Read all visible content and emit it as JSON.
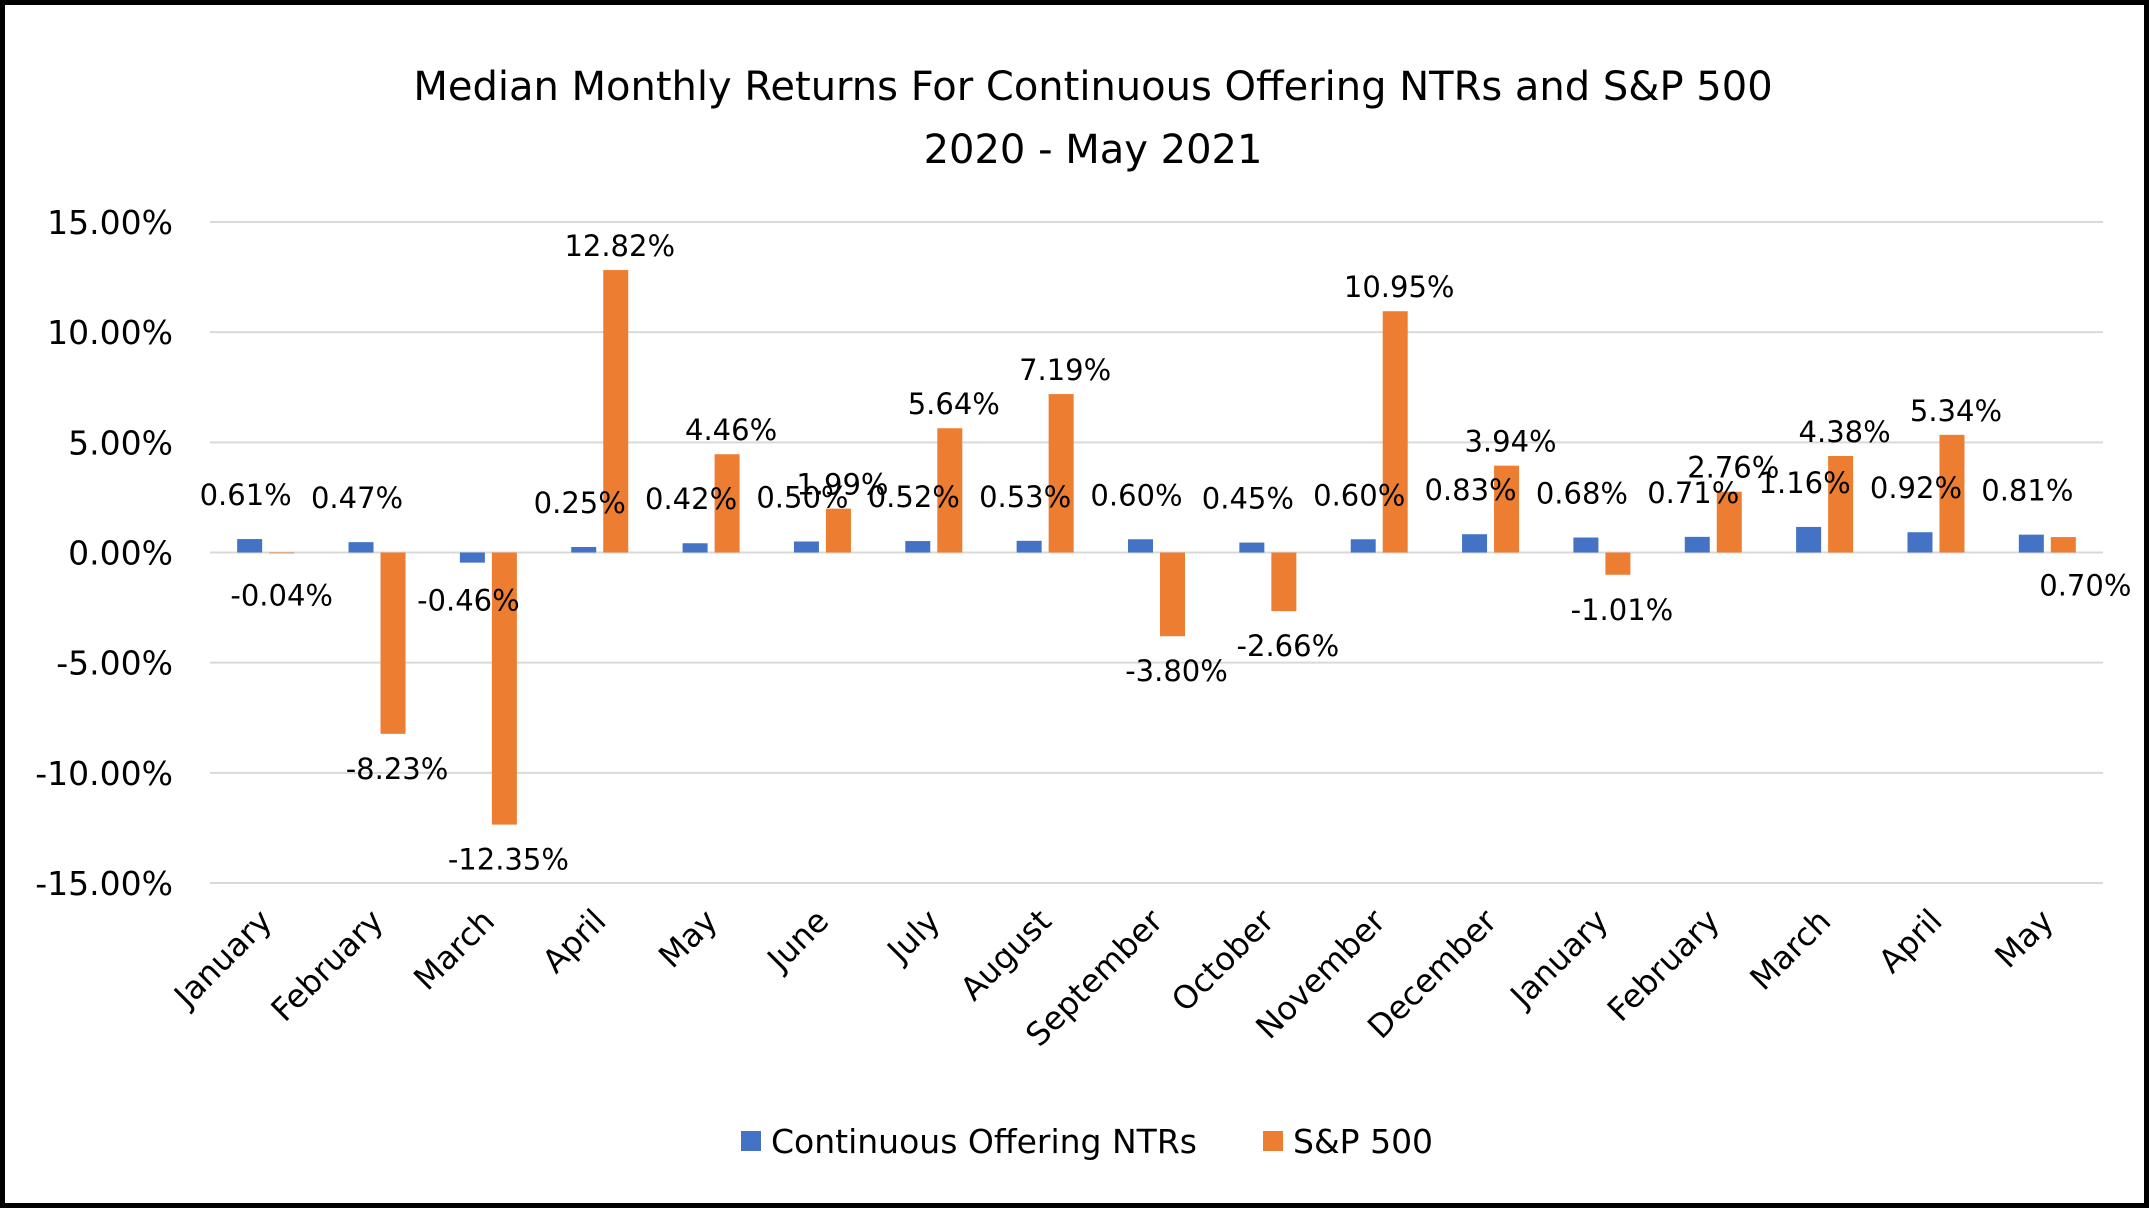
{
  "chart_data": {
    "type": "bar",
    "title": "Median Monthly Returns For Continuous Offering NTRs and S&P 500",
    "subtitle": "2020 - May 2021",
    "xlabel": "",
    "ylabel": "",
    "ylim": [
      -0.15,
      0.15
    ],
    "yticks": [
      0.15,
      0.1,
      0.05,
      0.0,
      -0.05,
      -0.1,
      -0.15
    ],
    "ytick_labels": [
      "15.00%",
      "10.00%",
      "5.00%",
      "0.00%",
      "-5.00%",
      "-10.00%",
      "-15.00%"
    ],
    "grid": true,
    "legend_position": "bottom",
    "categories": [
      "January",
      "February",
      "March",
      "April",
      "May",
      "June",
      "July",
      "August",
      "September",
      "October",
      "November",
      "December",
      "January",
      "February",
      "March",
      "April",
      "May"
    ],
    "series": [
      {
        "name": "Continuous Offering NTRs",
        "color": "#4472C4",
        "values": [
          0.0061,
          0.0047,
          -0.0046,
          0.0025,
          0.0042,
          0.005,
          0.0052,
          0.0053,
          0.006,
          0.0045,
          0.006,
          0.0083,
          0.0068,
          0.0071,
          0.0116,
          0.0092,
          0.0081
        ],
        "labels": [
          "0.61%",
          "0.47%",
          "-0.46%",
          "0.25%",
          "0.42%",
          "0.50%",
          "0.52%",
          "0.53%",
          "0.60%",
          "0.45%",
          "0.60%",
          "0.83%",
          "0.68%",
          "0.71%",
          "1.16%",
          "0.92%",
          "0.81%"
        ]
      },
      {
        "name": "S&P 500",
        "color": "#ED7D31",
        "values": [
          -0.0004,
          -0.0823,
          -0.1235,
          0.1282,
          0.0446,
          0.0199,
          0.0564,
          0.0719,
          -0.038,
          -0.0266,
          0.1095,
          0.0394,
          -0.0101,
          0.0276,
          0.0438,
          0.0534,
          0.007
        ],
        "labels": [
          "-0.04%",
          "-8.23%",
          "-12.35%",
          "12.82%",
          "4.46%",
          "1.99%",
          "5.64%",
          "7.19%",
          "-3.80%",
          "-2.66%",
          "10.95%",
          "3.94%",
          "-1.01%",
          "2.76%",
          "4.38%",
          "5.34%",
          "0.70%"
        ]
      }
    ]
  },
  "colors": {
    "grid": "#D9D9D9",
    "border": "#000000",
    "background": "#FFFFFF"
  }
}
